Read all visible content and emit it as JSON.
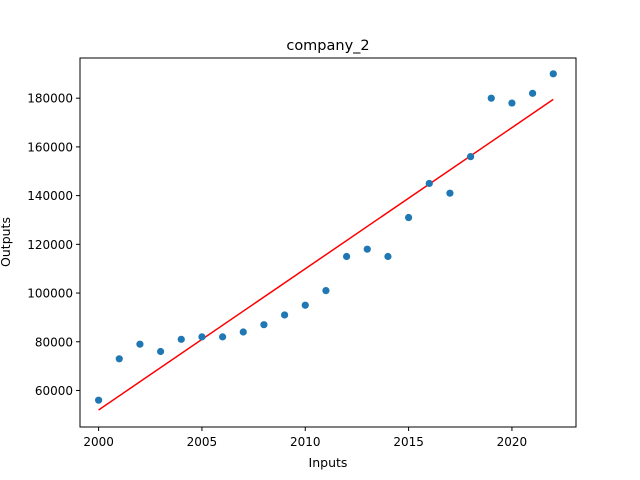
{
  "chart_data": {
    "type": "scatter",
    "title": "company_2",
    "xlabel": "Inputs",
    "ylabel": "Outputs",
    "xlim": [
      1999.1,
      2023.1
    ],
    "ylim": [
      45000,
      196500
    ],
    "x_ticks": [
      2000,
      2005,
      2010,
      2015,
      2020
    ],
    "y_ticks": [
      60000,
      80000,
      100000,
      120000,
      140000,
      160000,
      180000
    ],
    "grid": false,
    "legend": "none",
    "series": [
      {
        "kind": "scatter",
        "color": "#1f77b4",
        "x": [
          2000,
          2001,
          2002,
          2003,
          2004,
          2005,
          2006,
          2007,
          2008,
          2009,
          2010,
          2011,
          2012,
          2013,
          2014,
          2015,
          2016,
          2017,
          2018,
          2019,
          2020,
          2021,
          2022
        ],
        "y": [
          56000,
          73000,
          79000,
          76000,
          81000,
          82000,
          82000,
          84000,
          87000,
          91000,
          95000,
          101000,
          115000,
          118000,
          115000,
          131000,
          145000,
          141000,
          156000,
          180000,
          178000,
          182000,
          190000
        ]
      },
      {
        "kind": "line",
        "color": "#ff0000",
        "x": [
          2000,
          2022
        ],
        "y": [
          52000,
          179500
        ]
      }
    ]
  }
}
